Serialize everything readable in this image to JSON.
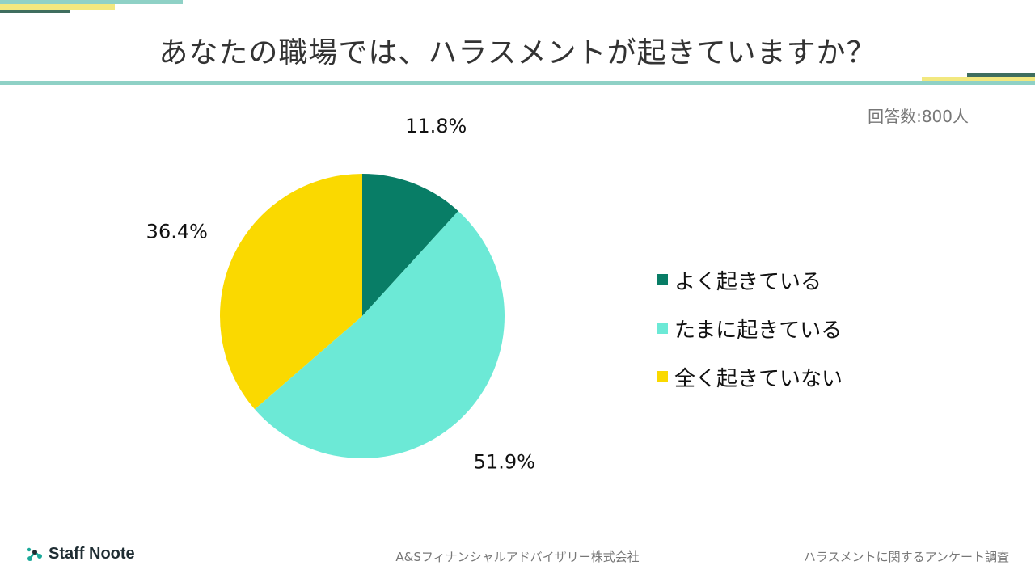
{
  "header": {
    "title": "あなたの職場では、ハラスメントが起きていますか？",
    "respondents": "回答数:800人"
  },
  "colors": {
    "accent_teal": "#8fd1c6",
    "accent_yellow": "#f2e87f",
    "accent_dark": "#3f6e5f"
  },
  "chart_data": {
    "type": "pie",
    "title": "あなたの職場では、ハラスメントが起きていますか？",
    "slices": [
      {
        "label": "よく起きている",
        "value": 11.8,
        "value_label": "11.8%",
        "color": "#087d66"
      },
      {
        "label": "たまに起きている",
        "value": 51.9,
        "value_label": "51.9%",
        "color": "#6ce9d6"
      },
      {
        "label": "全く起きていない",
        "value": 36.4,
        "value_label": "36.4%",
        "color": "#fad900"
      }
    ],
    "start_angle": "12 o'clock",
    "direction": "clockwise",
    "legend_position": "right"
  },
  "footer": {
    "logo_text": "Staff Noote",
    "company": "A&Sフィナンシャルアドバイザリー株式会社",
    "survey": "ハラスメントに関するアンケート調査"
  }
}
